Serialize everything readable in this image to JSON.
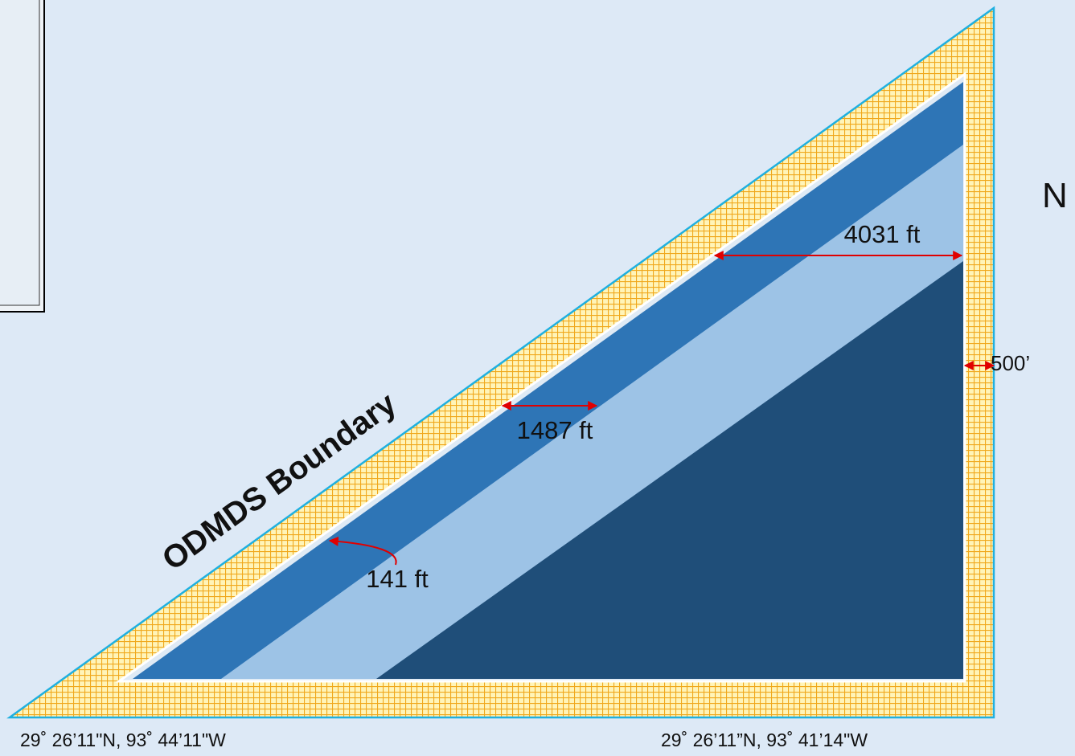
{
  "diagram": {
    "boundary_label": "ODMDS Boundary",
    "dimensions": {
      "width_top": "4031 ft",
      "width_middle": "1487 ft",
      "width_inner": "141 ft",
      "buffer": "500’"
    },
    "corners": {
      "southwest": "29˚ 26’11\"N, 93˚ 44’11\"W",
      "southeast": "29˚ 26’11”N, 93˚ 41’14\"W"
    },
    "side_text": "N"
  }
}
